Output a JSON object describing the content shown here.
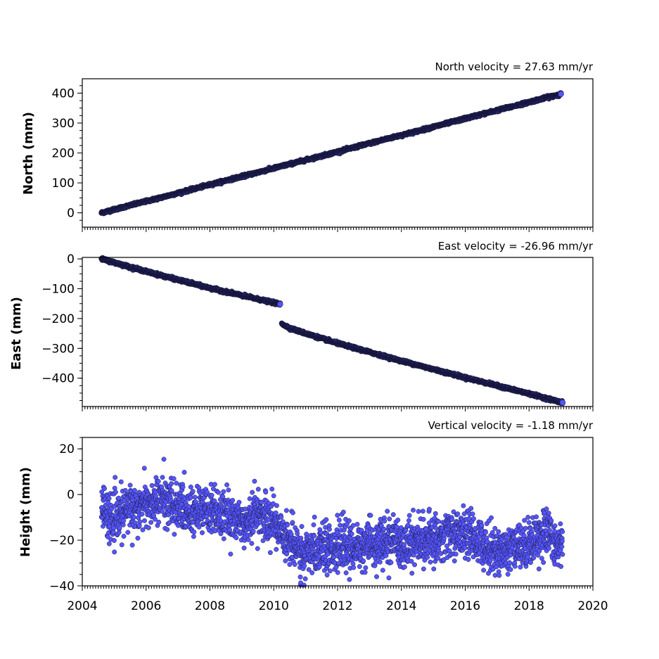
{
  "chart_data": [
    {
      "type": "scatter",
      "title": "North velocity = 27.63 mm/yr",
      "ylabel": "North (mm)",
      "xlim": [
        2004,
        2020
      ],
      "ylim": [
        -48,
        448
      ],
      "yticks": [
        "0",
        "100",
        "200",
        "300",
        "400"
      ],
      "series": [
        {
          "x": [
            2004.6,
            2005.5,
            2006.5,
            2007.5,
            2008.5,
            2009.5,
            2010.5,
            2011.5,
            2012.5,
            2013.5,
            2014.5,
            2015.5,
            2016.5,
            2017.5,
            2018.5,
            2019.0
          ],
          "values": [
            0,
            25,
            52,
            80,
            108,
            135,
            163,
            190,
            218,
            246,
            273,
            301,
            329,
            356,
            384,
            397
          ],
          "trend": "linear",
          "noise": 2
        }
      ]
    },
    {
      "type": "scatter",
      "title": "East velocity = -26.96 mm/yr",
      "ylabel": "East (mm)",
      "xlim": [
        2004,
        2020
      ],
      "ylim": [
        -495,
        5
      ],
      "yticks": [
        "0",
        "−100",
        "−200",
        "−300",
        "−400"
      ],
      "series": [
        {
          "x": [
            2004.6,
            2006,
            2008,
            2010.2
          ],
          "values": [
            0,
            -42,
            -98,
            -152
          ],
          "trend": "linear",
          "noise": 2
        },
        {
          "x": [
            2010.25,
            2010.5,
            2011,
            2012,
            2014,
            2016,
            2018,
            2019.05
          ],
          "values": [
            -217,
            -232,
            -250,
            -283,
            -342,
            -398,
            -452,
            -482
          ],
          "trend": "linear",
          "noise": 2
        }
      ]
    },
    {
      "type": "scatter",
      "title": "Vertical velocity = -1.18 mm/yr",
      "ylabel": "Height (mm)",
      "xlim": [
        2004,
        2020
      ],
      "ylim": [
        -40,
        25
      ],
      "yticks": [
        "20",
        "0",
        "−20",
        "−40"
      ],
      "series": [
        {
          "x": [
            2004.6,
            2005,
            2005.5,
            2006,
            2006.5,
            2007,
            2007.5,
            2008,
            2008.5,
            2009,
            2009.5,
            2010,
            2010.5,
            2011,
            2011.5,
            2012,
            2013,
            2014,
            2015,
            2015.5,
            2016,
            2016.5,
            2017,
            2017.5,
            2018,
            2018.5,
            2019.05
          ],
          "values": [
            -5,
            -12,
            -5,
            -5,
            -2,
            -6,
            -8,
            -6,
            -10,
            -12,
            -8,
            -12,
            -20,
            -27,
            -22,
            -24,
            -22,
            -21,
            -20,
            -17,
            -17,
            -21,
            -25,
            -24,
            -21,
            -16,
            -24
          ],
          "trend": "spread",
          "noise": 5
        }
      ]
    }
  ],
  "x_ticks": [
    "2004",
    "2006",
    "2008",
    "2010",
    "2012",
    "2014",
    "2016",
    "2018",
    "2020"
  ]
}
